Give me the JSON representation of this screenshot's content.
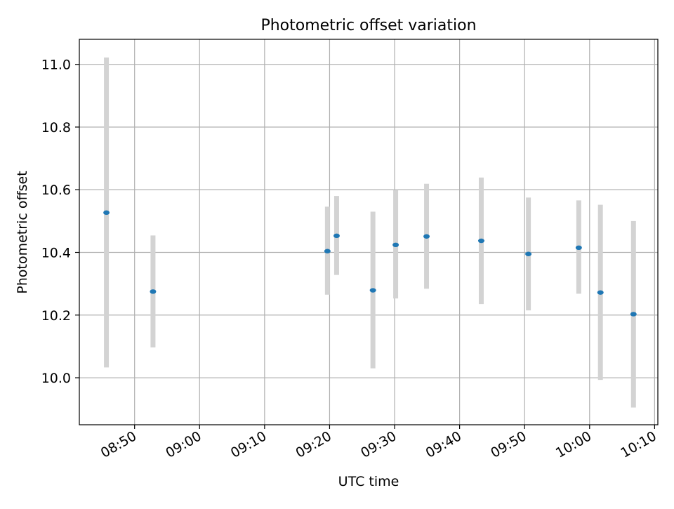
{
  "chart_data": {
    "type": "scatter",
    "title": "Photometric offset variation",
    "xlabel": "UTC time",
    "ylabel": "Photometric offset",
    "x_is_time": true,
    "xlim": [
      "08:41:30",
      "10:10:30"
    ],
    "ylim": [
      9.85,
      11.08
    ],
    "x_ticks": [
      "08:50",
      "09:00",
      "09:10",
      "09:20",
      "09:30",
      "09:40",
      "09:50",
      "10:00",
      "10:10"
    ],
    "y_ticks": [
      10.0,
      10.2,
      10.4,
      10.6,
      10.8,
      11.0
    ],
    "y_tick_labels": [
      "10.0",
      "10.2",
      "10.4",
      "10.6",
      "10.8",
      "11.0"
    ],
    "grid": true,
    "colors": {
      "point": "#1f77b4",
      "errorbar": "#d3d3d3",
      "grid": "#b0b0b0"
    },
    "points": [
      {
        "time": "08:45:40",
        "y": 10.527,
        "ylow": 10.033,
        "yhigh": 11.022
      },
      {
        "time": "08:52:50",
        "y": 10.275,
        "ylow": 10.097,
        "yhigh": 10.454
      },
      {
        "time": "09:19:40",
        "y": 10.404,
        "ylow": 10.265,
        "yhigh": 10.546
      },
      {
        "time": "09:21:05",
        "y": 10.453,
        "ylow": 10.328,
        "yhigh": 10.58
      },
      {
        "time": "09:26:40",
        "y": 10.279,
        "ylow": 10.03,
        "yhigh": 10.53
      },
      {
        "time": "09:30:10",
        "y": 10.424,
        "ylow": 10.253,
        "yhigh": 10.599
      },
      {
        "time": "09:34:55",
        "y": 10.451,
        "ylow": 10.284,
        "yhigh": 10.619
      },
      {
        "time": "09:43:20",
        "y": 10.437,
        "ylow": 10.235,
        "yhigh": 10.639
      },
      {
        "time": "09:50:35",
        "y": 10.395,
        "ylow": 10.215,
        "yhigh": 10.575
      },
      {
        "time": "09:58:20",
        "y": 10.415,
        "ylow": 10.268,
        "yhigh": 10.566
      },
      {
        "time": "10:01:40",
        "y": 10.272,
        "ylow": 9.993,
        "yhigh": 10.552
      },
      {
        "time": "10:06:45",
        "y": 10.203,
        "ylow": 9.905,
        "yhigh": 10.5
      }
    ]
  }
}
